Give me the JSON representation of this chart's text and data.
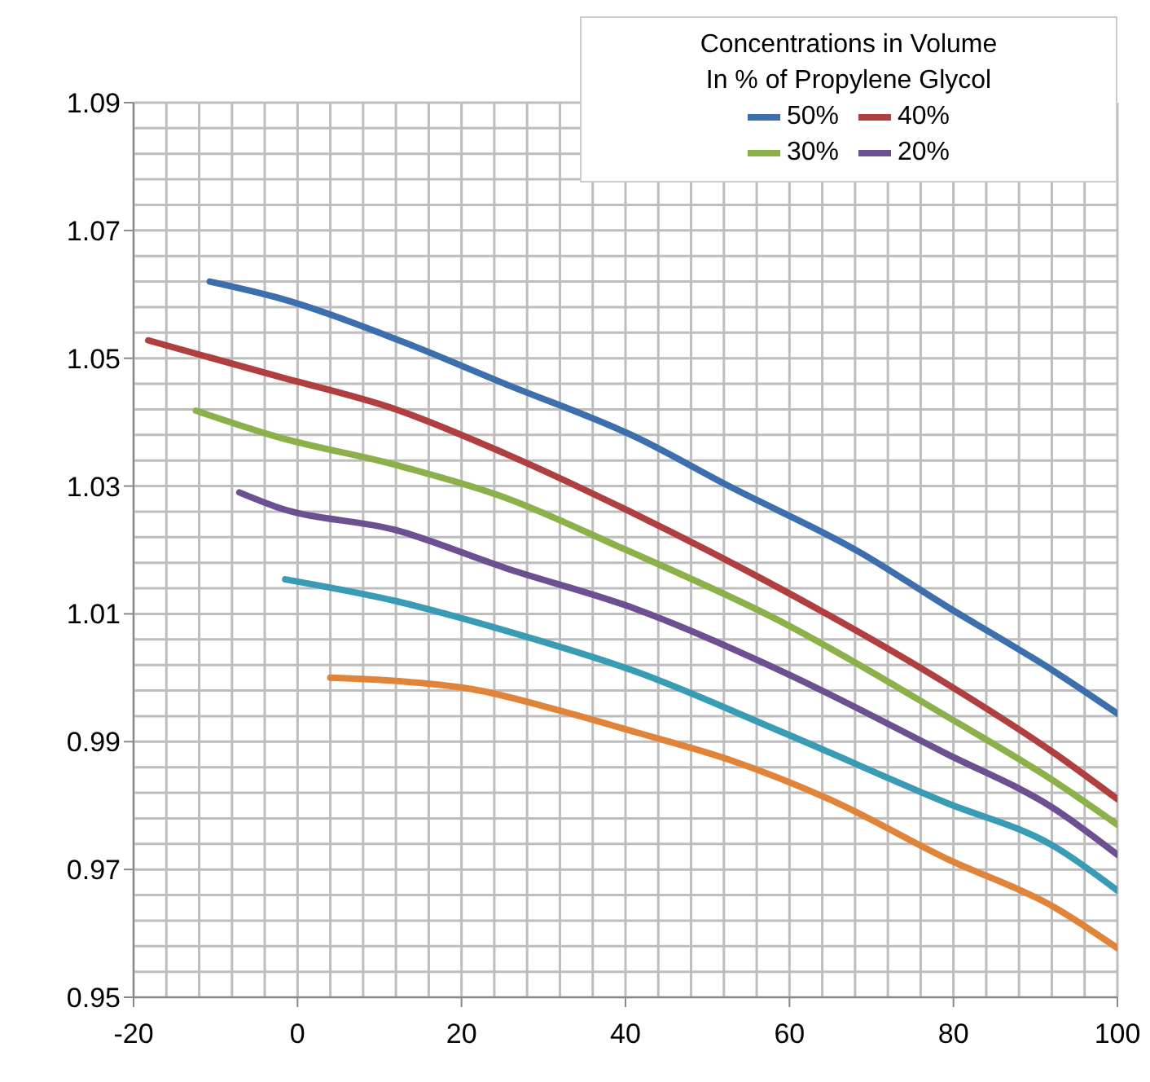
{
  "chart_data": {
    "type": "line",
    "legend_title": "Concentrations in Volume\nIn % of Propylene Glycol",
    "legend": "top right",
    "grid": true,
    "xlim": [
      -20,
      100
    ],
    "xticks": [
      -20,
      0,
      20,
      40,
      60,
      80,
      100
    ],
    "ylim": [
      0.95,
      1.09
    ],
    "yticks": [
      0.95,
      0.97,
      0.99,
      1.01,
      1.03,
      1.05,
      1.07,
      1.09
    ],
    "series": [
      {
        "name": "50%",
        "color": "#3e6fad",
        "x": [
          -10.7,
          -2.5,
          12,
          25.3,
          41.2,
          52.6,
          68.5,
          79,
          92.3,
          100
        ],
        "values": [
          1.062,
          1.0595,
          1.053,
          1.046,
          1.0377,
          1.03,
          1.0197,
          1.0113,
          1.001,
          0.9944
        ]
      },
      {
        "name": "40%",
        "color": "#b04040",
        "x": [
          -18.2,
          -2.5,
          12,
          25.3,
          41.2,
          59.1,
          79,
          92.3,
          100
        ],
        "values": [
          1.0528,
          1.0472,
          1.042,
          1.0351,
          1.0256,
          1.0138,
          0.9992,
          0.9882,
          0.981
        ]
      },
      {
        "name": "30%",
        "color": "#8cb04a",
        "x": [
          -12.4,
          -2.5,
          12,
          25.3,
          39.2,
          59.1,
          79,
          92.3,
          100
        ],
        "values": [
          1.0418,
          1.0377,
          1.0333,
          1.0282,
          1.0205,
          1.0087,
          0.9941,
          0.9838,
          0.977
        ]
      },
      {
        "name": "20%",
        "color": "#6d5091",
        "x": [
          -7.1,
          -2.5,
          12,
          25.3,
          41.2,
          59.1,
          79,
          92.3,
          100
        ],
        "values": [
          1.029,
          1.0267,
          1.0231,
          1.0172,
          1.0108,
          1.001,
          0.9882,
          0.9795,
          0.9723
        ]
      },
      {
        "color": "#3a9bb5",
        "x": [
          -1.5,
          12,
          25.3,
          41.2,
          59.1,
          79,
          92.3,
          100
        ],
        "values": [
          1.0154,
          1.012,
          1.0074,
          1.001,
          0.9915,
          0.9805,
          0.9736,
          0.9667
        ]
      },
      {
        "color": "#e0843a",
        "x": [
          4,
          12,
          21.4,
          31.9,
          41.2,
          52.6,
          65.7,
          79,
          92.3,
          100
        ],
        "values": [
          1.0,
          0.9995,
          0.9982,
          0.9949,
          0.9915,
          0.9872,
          0.9805,
          0.9718,
          0.9641,
          0.9577
        ]
      }
    ]
  }
}
